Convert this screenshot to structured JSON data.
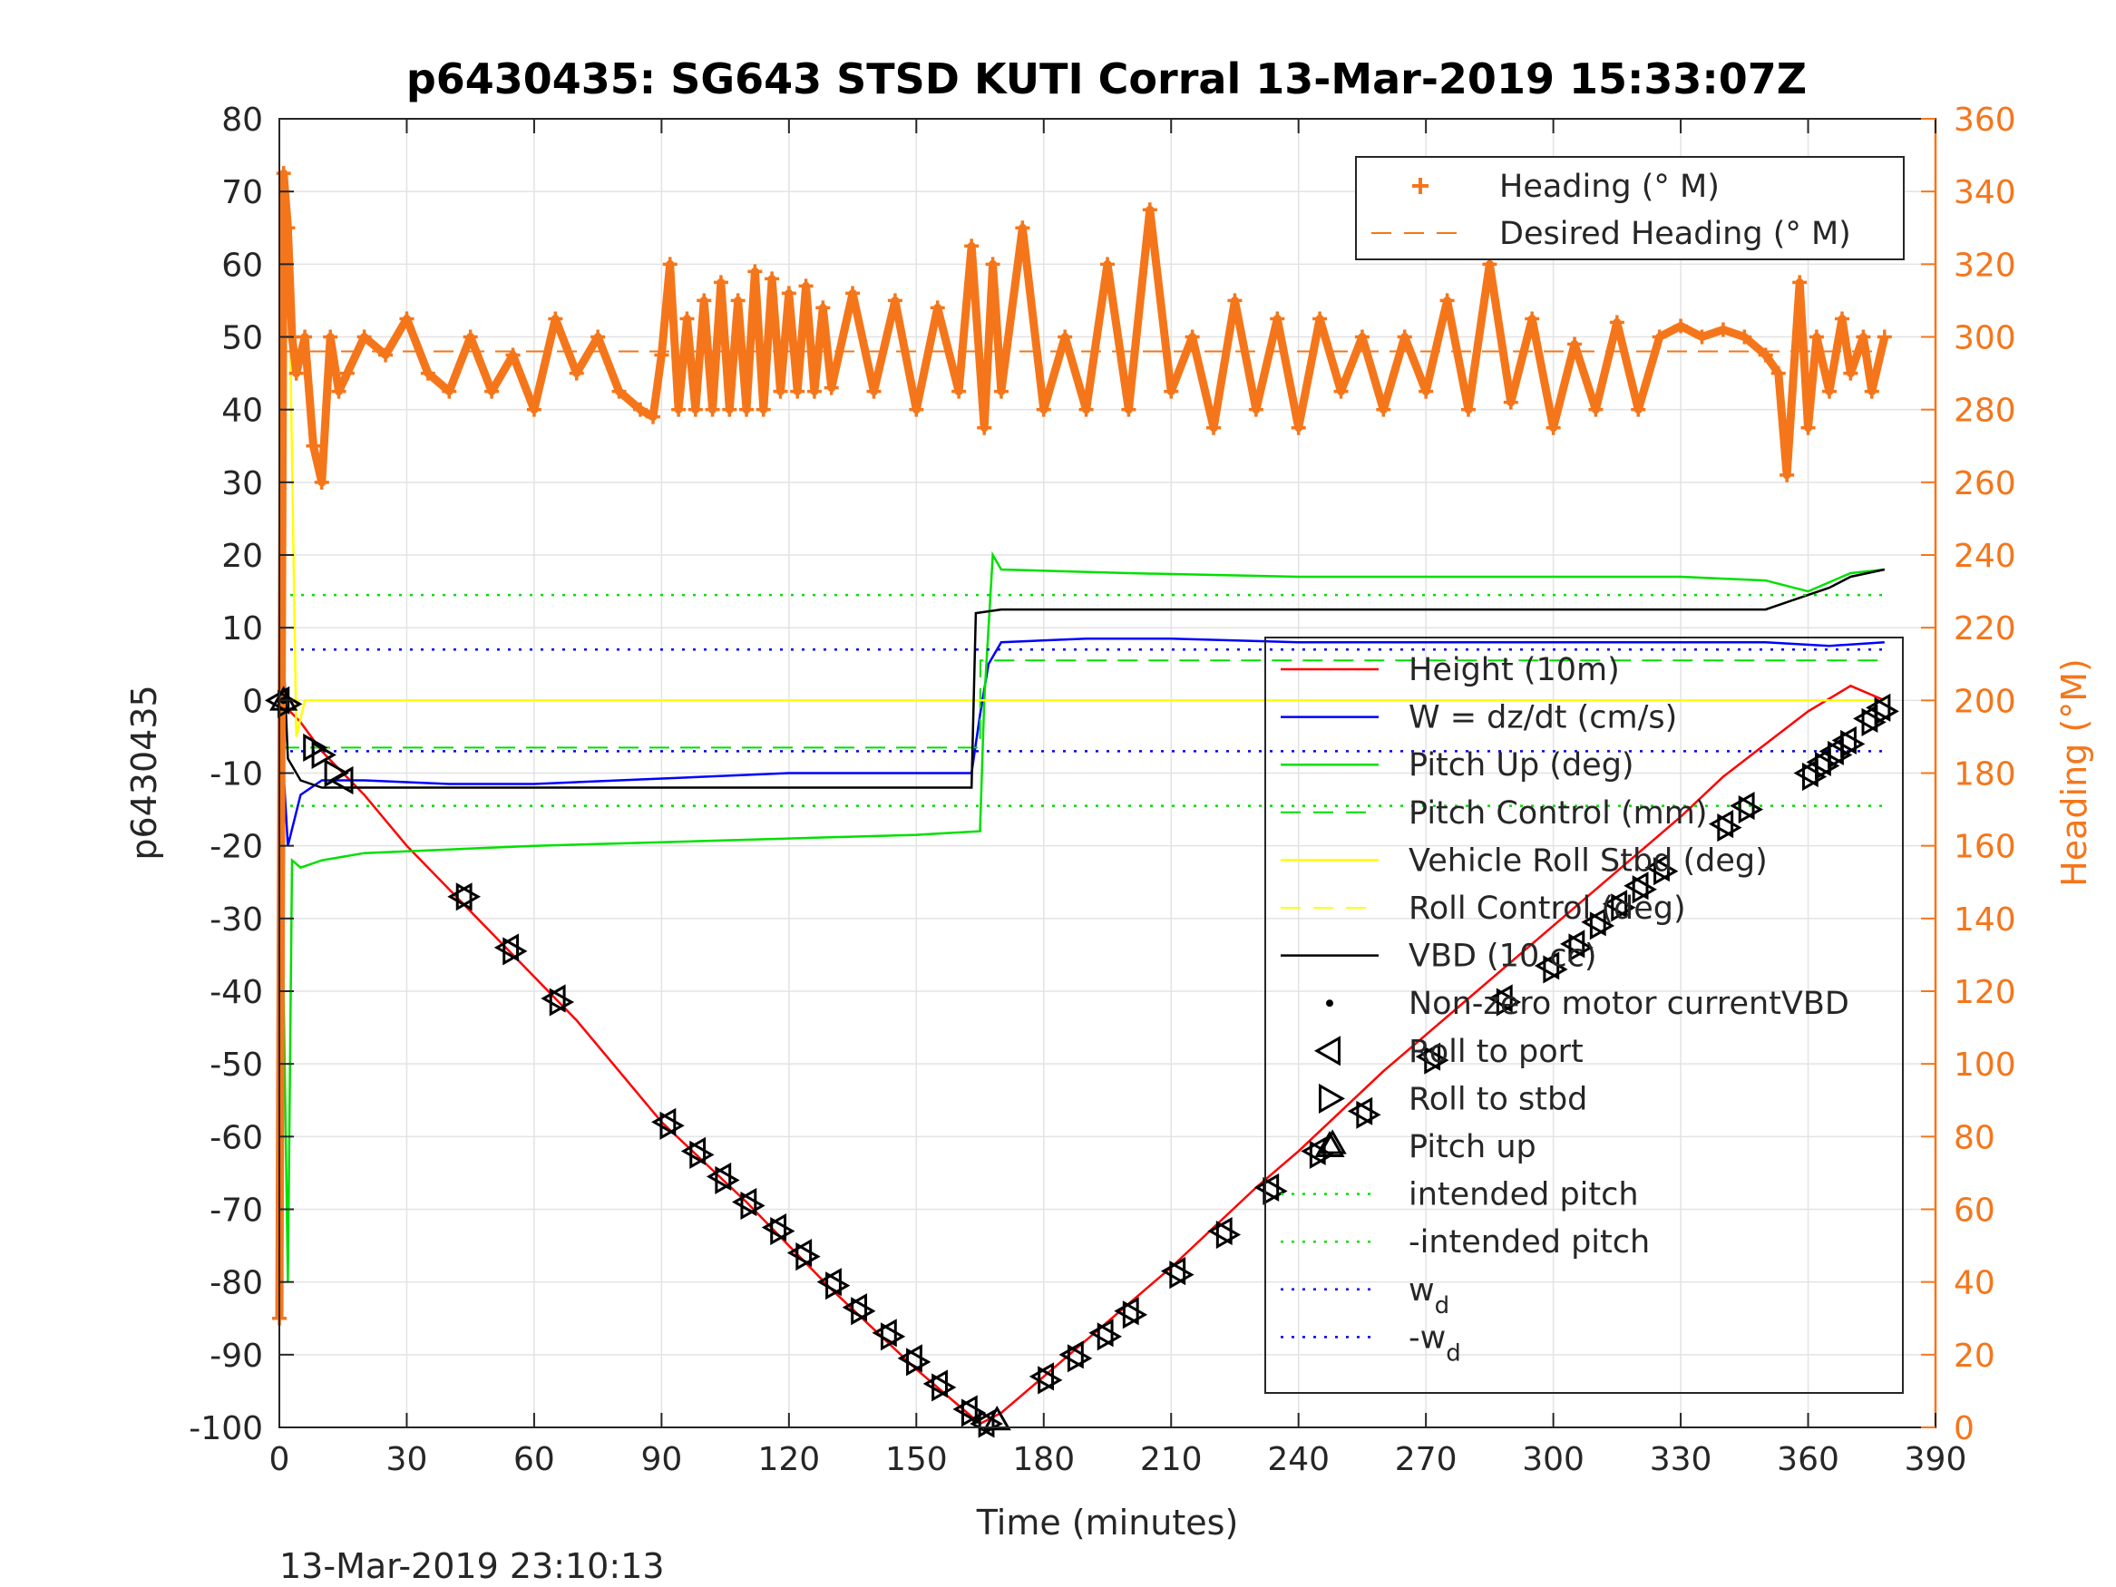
{
  "chart_data": {
    "type": "line",
    "title": "p6430435: SG643 STSD KUTI Corral 13-Mar-2019 15:33:07Z",
    "xlabel": "Time (minutes)",
    "ylabel_left": "p6430435",
    "ylabel_right": "Heading (°M)",
    "footer": "13-Mar-2019 23:10:13",
    "xlim": [
      0,
      390
    ],
    "ylim_left": [
      -100,
      80
    ],
    "ylim_right": [
      0,
      360
    ],
    "xticks": [
      0,
      30,
      60,
      90,
      120,
      150,
      180,
      210,
      240,
      270,
      300,
      330,
      360,
      390
    ],
    "yticks_left": [
      -100,
      -90,
      -80,
      -70,
      -60,
      -50,
      -40,
      -30,
      -20,
      -10,
      0,
      10,
      20,
      30,
      40,
      50,
      60,
      70,
      80
    ],
    "yticks_right": [
      0,
      20,
      40,
      60,
      80,
      100,
      120,
      140,
      160,
      180,
      200,
      220,
      240,
      260,
      280,
      300,
      320,
      340,
      360
    ],
    "grid": true,
    "legend_top_right": [
      {
        "label": "Heading (° M)",
        "color": "#f5761a",
        "style": "plus"
      },
      {
        "label": "Desired Heading (° M)",
        "color": "#f5761a",
        "style": "dash"
      }
    ],
    "legend_bottom_right": [
      {
        "label": "Height (10m)",
        "color": "#ff0000",
        "style": "line"
      },
      {
        "label": "W = dz/dt (cm/s)",
        "color": "#0000ff",
        "style": "line"
      },
      {
        "label": "Pitch Up (deg)",
        "color": "#00e000",
        "style": "line"
      },
      {
        "label": "Pitch Control (mm)",
        "color": "#00e000",
        "style": "dash"
      },
      {
        "label": "Vehicle Roll Stbd (deg)",
        "color": "#ffff00",
        "style": "line"
      },
      {
        "label": "Roll Control (deg)",
        "color": "#ffff00",
        "style": "dash"
      },
      {
        "label": "VBD (10 cc)",
        "color": "#000000",
        "style": "line"
      },
      {
        "label": "Non-zero motor currentVBD",
        "color": "#000000",
        "style": "dot"
      },
      {
        "label": "Roll to port",
        "color": "#000000",
        "style": "triangle-left"
      },
      {
        "label": "Roll to stbd",
        "color": "#000000",
        "style": "triangle-right"
      },
      {
        "label": "Pitch up",
        "color": "#000000",
        "style": "triangle-up"
      },
      {
        "label": "intended pitch",
        "color": "#00e000",
        "style": "dot-line"
      },
      {
        "label": "-intended pitch",
        "color": "#00e000",
        "style": "dot-line"
      },
      {
        "label": "w",
        "sub": "d",
        "color": "#0000ff",
        "style": "dot-line"
      },
      {
        "label": "-w",
        "sub": "d",
        "color": "#0000ff",
        "style": "dot-line"
      }
    ],
    "series": [
      {
        "name": "Height (10m)",
        "color": "#ff0000",
        "x": [
          0,
          5,
          10,
          15,
          20,
          30,
          40,
          50,
          60,
          70,
          80,
          90,
          100,
          110,
          120,
          130,
          140,
          150,
          160,
          165,
          170,
          180,
          190,
          200,
          210,
          220,
          230,
          240,
          250,
          260,
          270,
          280,
          290,
          300,
          310,
          320,
          330,
          340,
          350,
          360,
          370,
          378
        ],
        "y": [
          0,
          -3,
          -7,
          -10,
          -13,
          -20,
          -26,
          -32,
          -38,
          -44,
          -51,
          -58,
          -63.5,
          -69,
          -75,
          -81,
          -86.5,
          -92,
          -97,
          -99.5,
          -98,
          -93,
          -88,
          -83,
          -78,
          -72.5,
          -67,
          -62,
          -56.5,
          -51,
          -46,
          -41,
          -36,
          -31,
          -26,
          -21,
          -16,
          -10.5,
          -6,
          -1.5,
          2,
          0
        ]
      },
      {
        "name": "W = dz/dt (cm/s)",
        "color": "#0000ff",
        "x": [
          0,
          2,
          5,
          10,
          20,
          40,
          60,
          80,
          100,
          120,
          140,
          150,
          160,
          163,
          165,
          167,
          170,
          190,
          210,
          240,
          270,
          300,
          330,
          350,
          365,
          378
        ],
        "y": [
          0,
          -20,
          -13,
          -11,
          -11,
          -11.5,
          -11.5,
          -11,
          -10.5,
          -10,
          -10,
          -10,
          -10,
          -10,
          -2,
          5,
          8,
          8.5,
          8.5,
          8,
          8,
          8,
          8,
          8,
          7.5,
          8
        ]
      },
      {
        "name": "Pitch Up (deg)",
        "color": "#00e000",
        "x": [
          0,
          2,
          3,
          5,
          10,
          20,
          40,
          60,
          90,
          120,
          150,
          165,
          166,
          168,
          170,
          200,
          240,
          270,
          300,
          330,
          350,
          360,
          370,
          378
        ],
        "y": [
          0,
          -80,
          -22,
          -23,
          -22,
          -21,
          -20.5,
          -20,
          -19.5,
          -19,
          -18.5,
          -18,
          0,
          20,
          18,
          17.5,
          17,
          17,
          17,
          17,
          16.5,
          15,
          17.5,
          18
        ]
      },
      {
        "name": "Pitch Control (mm)",
        "color": "#00e000",
        "style": "dash",
        "x": [
          0,
          165,
          165.1,
          378
        ],
        "y": [
          -6.5,
          -6.5,
          5.5,
          5.5
        ]
      },
      {
        "name": "Vehicle Roll Stbd (deg)",
        "color": "#ffff00",
        "x": [
          0,
          2,
          4,
          6,
          10,
          30,
          60,
          90,
          120,
          150,
          165,
          170,
          210,
          240,
          270,
          300,
          330,
          360,
          378
        ],
        "y": [
          0,
          70,
          -5,
          0,
          0,
          0,
          0,
          0,
          0,
          0,
          0,
          0,
          0,
          0,
          0,
          0,
          0,
          0,
          0
        ]
      },
      {
        "name": "Roll Control (deg)",
        "color": "#ffff00",
        "style": "dash",
        "x": [
          0,
          378
        ],
        "y": [
          0,
          0
        ]
      },
      {
        "name": "VBD (10 cc)",
        "color": "#000000",
        "x": [
          0,
          2,
          5,
          10,
          20,
          163,
          164,
          170,
          300,
          350,
          355,
          360,
          365,
          370,
          378
        ],
        "y": [
          20,
          -8,
          -11,
          -12,
          -12,
          -12,
          12,
          12.5,
          12.5,
          12.5,
          13.5,
          14.5,
          15.5,
          17,
          18
        ]
      },
      {
        "name": "intended pitch",
        "color": "#00e000",
        "style": "dot",
        "x": [
          0,
          378
        ],
        "y": [
          14.5,
          14.5
        ]
      },
      {
        "name": "-intended pitch",
        "color": "#00e000",
        "style": "dot",
        "x": [
          0,
          378
        ],
        "y": [
          -14.5,
          -14.5
        ]
      },
      {
        "name": "w_d",
        "color": "#0000ff",
        "style": "dot",
        "x": [
          0,
          378
        ],
        "y": [
          7,
          7
        ]
      },
      {
        "name": "-w_d",
        "color": "#0000ff",
        "style": "dot",
        "x": [
          0,
          378
        ],
        "y": [
          -7,
          -7
        ]
      },
      {
        "name": "Heading (° M)",
        "color": "#f5761a",
        "style": "plus",
        "axis": "right",
        "x": [
          0,
          1,
          2,
          3,
          4,
          6,
          8,
          10,
          12,
          14,
          16,
          20,
          25,
          30,
          35,
          40,
          45,
          50,
          55,
          60,
          65,
          70,
          75,
          80,
          85,
          88,
          90,
          92,
          94,
          96,
          98,
          100,
          102,
          104,
          106,
          108,
          110,
          112,
          114,
          116,
          118,
          120,
          122,
          124,
          126,
          128,
          130,
          135,
          140,
          145,
          150,
          155,
          160,
          163,
          166,
          168,
          170,
          175,
          180,
          185,
          190,
          195,
          200,
          205,
          210,
          215,
          220,
          225,
          230,
          235,
          240,
          245,
          250,
          255,
          260,
          265,
          270,
          275,
          280,
          285,
          290,
          295,
          300,
          305,
          310,
          315,
          320,
          325,
          330,
          335,
          340,
          345,
          350,
          353,
          355,
          358,
          360,
          362,
          365,
          368,
          370,
          373,
          375,
          378
        ],
        "y": [
          30,
          345,
          330,
          300,
          290,
          300,
          270,
          260,
          300,
          285,
          290,
          300,
          295,
          305,
          290,
          285,
          300,
          285,
          295,
          280,
          305,
          290,
          300,
          285,
          280,
          278,
          295,
          320,
          280,
          305,
          280,
          310,
          280,
          315,
          280,
          310,
          280,
          318,
          280,
          316,
          285,
          312,
          285,
          314,
          285,
          308,
          286,
          312,
          285,
          310,
          280,
          308,
          285,
          325,
          275,
          320,
          285,
          330,
          280,
          300,
          280,
          320,
          280,
          335,
          285,
          300,
          275,
          310,
          280,
          305,
          275,
          305,
          285,
          300,
          280,
          300,
          285,
          310,
          280,
          320,
          282,
          305,
          275,
          298,
          280,
          304,
          280,
          300,
          303,
          300,
          302,
          300,
          295,
          290,
          262,
          315,
          275,
          300,
          285,
          305,
          290,
          300,
          285,
          300
        ]
      },
      {
        "name": "Desired Heading (° M)",
        "color": "#f5761a",
        "style": "dash",
        "axis": "right",
        "x": [
          0,
          378
        ],
        "y": [
          296,
          296
        ]
      }
    ],
    "markers": {
      "roll_to_port": [
        [
          0,
          0
        ],
        [
          15,
          -11
        ],
        [
          43,
          -27
        ],
        [
          54,
          -34
        ],
        [
          65,
          -41
        ],
        [
          91,
          -58
        ],
        [
          98,
          -62
        ],
        [
          104,
          -65.5
        ],
        [
          110,
          -69
        ],
        [
          117,
          -72.5
        ],
        [
          123,
          -76
        ],
        [
          130,
          -80
        ],
        [
          136,
          -83.5
        ],
        [
          143,
          -87
        ],
        [
          149,
          -90.5
        ],
        [
          155,
          -94
        ],
        [
          162,
          -97.5
        ],
        [
          166,
          -99.5
        ],
        [
          180,
          -93
        ],
        [
          187,
          -90
        ],
        [
          194,
          -87
        ],
        [
          200,
          -84
        ],
        [
          211,
          -78.5
        ],
        [
          222,
          -73
        ],
        [
          233,
          -67
        ],
        [
          244,
          -62
        ],
        [
          255,
          -56.5
        ],
        [
          271,
          -49
        ],
        [
          288,
          -41
        ],
        [
          299,
          -36.5
        ],
        [
          305,
          -33.5
        ],
        [
          310,
          -30.5
        ],
        [
          315,
          -28
        ],
        [
          320,
          -25.5
        ],
        [
          325,
          -23
        ],
        [
          340,
          -17
        ],
        [
          345,
          -14.5
        ],
        [
          360,
          -10
        ],
        [
          363,
          -8.5
        ],
        [
          366,
          -7
        ],
        [
          369,
          -5.5
        ],
        [
          374,
          -2.5
        ],
        [
          377,
          -1
        ]
      ],
      "roll_to_stbd": [
        [
          2,
          -0.5
        ],
        [
          8,
          -6.5
        ],
        [
          10,
          -7.5
        ],
        [
          13,
          -10
        ],
        [
          44,
          -27
        ],
        [
          55,
          -34.5
        ],
        [
          66,
          -41.5
        ],
        [
          92,
          -58.5
        ],
        [
          99,
          -62.5
        ],
        [
          105,
          -66
        ],
        [
          111,
          -69.5
        ],
        [
          118,
          -73
        ],
        [
          124,
          -76.5
        ],
        [
          131,
          -80.5
        ],
        [
          137,
          -84
        ],
        [
          144,
          -87.5
        ],
        [
          150,
          -91
        ],
        [
          156,
          -94.5
        ],
        [
          163,
          -98
        ],
        [
          167,
          -99.5
        ],
        [
          181,
          -93.5
        ],
        [
          188,
          -90.5
        ],
        [
          195,
          -87.5
        ],
        [
          201,
          -84.5
        ],
        [
          212,
          -79
        ],
        [
          223,
          -73.5
        ],
        [
          234,
          -67.5
        ],
        [
          245,
          -62.5
        ],
        [
          256,
          -57
        ],
        [
          272,
          -49.5
        ],
        [
          289,
          -41.5
        ],
        [
          300,
          -37
        ],
        [
          306,
          -34
        ],
        [
          311,
          -31
        ],
        [
          316,
          -28.5
        ],
        [
          321,
          -26
        ],
        [
          326,
          -23.5
        ],
        [
          341,
          -17.5
        ],
        [
          346,
          -15
        ],
        [
          361,
          -10.5
        ],
        [
          364,
          -9
        ],
        [
          367,
          -7.5
        ],
        [
          370,
          -6
        ],
        [
          375,
          -3
        ],
        [
          378,
          -1.5
        ]
      ],
      "pitch_up": [
        [
          1,
          0
        ],
        [
          169,
          -99
        ],
        [
          248,
          -61
        ]
      ],
      "vbd_motor": [
        [
          1,
          0
        ],
        [
          164,
          -99
        ]
      ]
    }
  }
}
